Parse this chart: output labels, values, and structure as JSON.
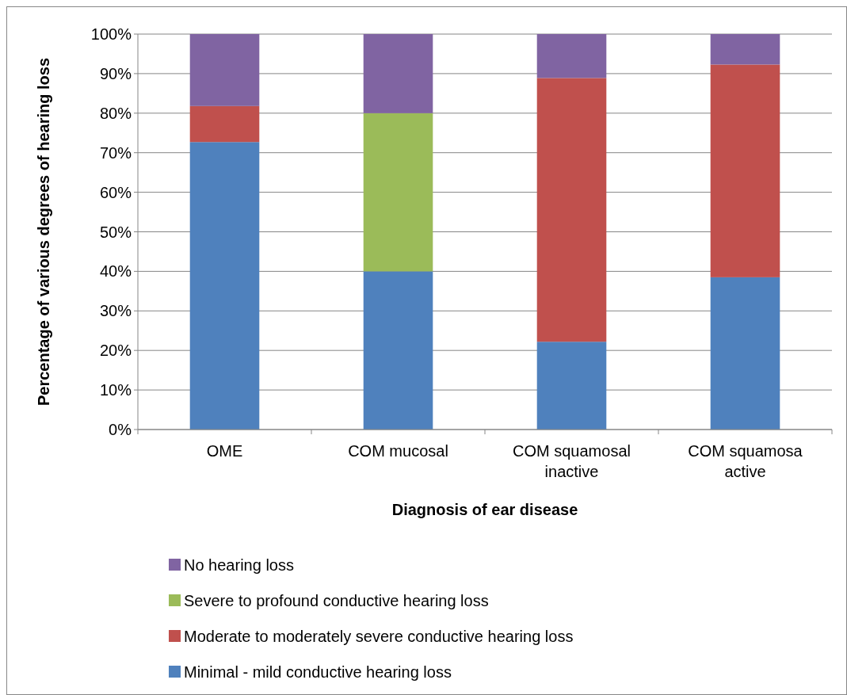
{
  "chart_data": {
    "type": "bar",
    "stacked": true,
    "xlabel": "Diagnosis of ear disease",
    "ylabel": "Percentage of various degrees of hearing loss",
    "categories": [
      "OME",
      "COM mucosal",
      "COM squamosal inactive",
      "COM squamosa active"
    ],
    "series": [
      {
        "name": "Minimal - mild conductive hearing loss",
        "color": "#4f81bd",
        "values": [
          72.7,
          40,
          22.2,
          38.5
        ]
      },
      {
        "name": "Moderate to moderately severe conductive hearing loss",
        "color": "#c0504d",
        "values": [
          9.1,
          0,
          66.7,
          53.8
        ]
      },
      {
        "name": "Severe to profound conductive hearing loss",
        "color": "#9bbb59",
        "values": [
          0,
          40,
          0,
          0
        ]
      },
      {
        "name": "No hearing loss",
        "color": "#8064a2",
        "values": [
          18.2,
          20,
          11.1,
          7.7
        ]
      }
    ],
    "ylim": [
      0,
      100
    ],
    "yticks": [
      {
        "value": 0,
        "label": "0%"
      },
      {
        "value": 10,
        "label": "10%"
      },
      {
        "value": 20,
        "label": "20%"
      },
      {
        "value": 30,
        "label": "30%"
      },
      {
        "value": 40,
        "label": "40%"
      },
      {
        "value": 50,
        "label": "50%"
      },
      {
        "value": 60,
        "label": "60%"
      },
      {
        "value": 70,
        "label": "70%"
      },
      {
        "value": 80,
        "label": "80%"
      },
      {
        "value": 90,
        "label": "90%"
      },
      {
        "value": 100,
        "label": "100%"
      }
    ],
    "grid": "y",
    "legend": "bottom"
  }
}
